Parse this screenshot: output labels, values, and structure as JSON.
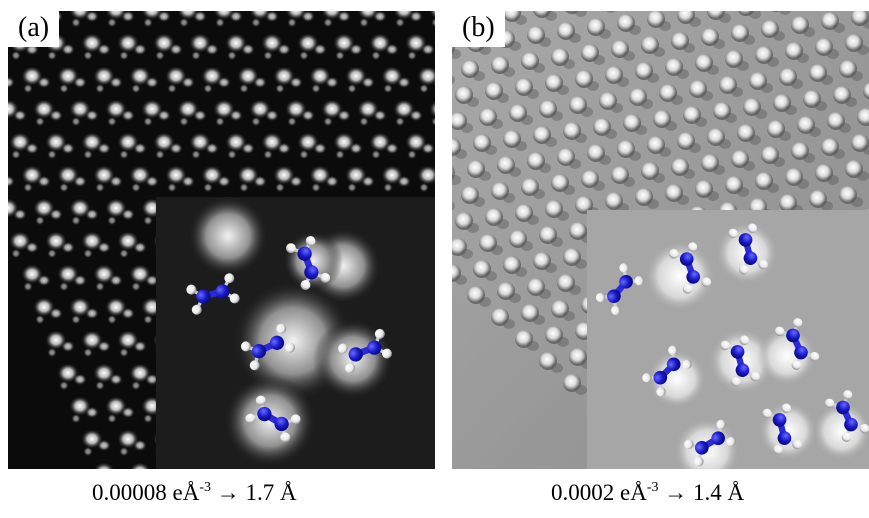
{
  "panels": [
    {
      "label": "(a)",
      "caption": {
        "prefix": "0.00008 eÅ",
        "exponent": "-3",
        "suffix": " → 1.7 Å"
      },
      "tone": "dark"
    },
    {
      "label": "(b)",
      "caption": {
        "prefix": "0.0002 eÅ",
        "exponent": "-3",
        "suffix": " → 1.4 Å"
      },
      "tone": "light"
    }
  ],
  "colors": {
    "nitrogen": "#1a1acc",
    "hydrogen": "#f0f0f0",
    "bond": "#d0d0d0"
  }
}
